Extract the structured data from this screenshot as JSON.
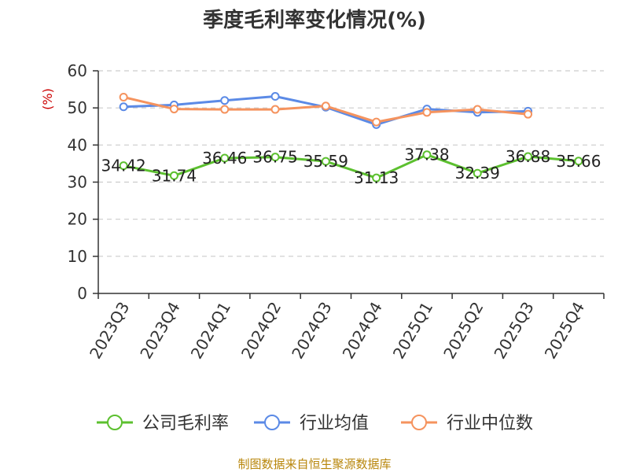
{
  "chart_data": {
    "type": "line",
    "title": "季度毛利率变化情况(%)",
    "ylabel": "(%)",
    "ylim": [
      0,
      60
    ],
    "yticks": [
      0,
      10,
      20,
      30,
      40,
      50,
      60
    ],
    "grid": true,
    "legend_position": "bottom",
    "categories": [
      "2023Q3",
      "2023Q4",
      "2024Q1",
      "2024Q2",
      "2024Q3",
      "2024Q4",
      "2025Q1",
      "2025Q2",
      "2025Q3",
      "2025Q4"
    ],
    "series": [
      {
        "name": "公司毛利率",
        "color": "#5cc02f",
        "values": [
          34.42,
          31.74,
          36.46,
          36.75,
          35.59,
          31.13,
          37.38,
          32.39,
          36.88,
          35.66
        ],
        "labels": [
          "34.42",
          "31.74",
          "36.46",
          "36.75",
          "35.59",
          "31.13",
          "37.38",
          "32.39",
          "36.88",
          "35.66"
        ]
      },
      {
        "name": "行业均值",
        "color": "#5b8ae6",
        "values": [
          50.3,
          50.8,
          52.0,
          53.1,
          50.2,
          45.5,
          49.7,
          48.8,
          49.1,
          null
        ]
      },
      {
        "name": "行业中位数",
        "color": "#f5935e",
        "values": [
          52.9,
          49.7,
          49.6,
          49.6,
          50.5,
          46.2,
          48.8,
          49.6,
          48.3,
          null
        ]
      }
    ]
  },
  "source_text": "制图数据来自恒生聚源数据库"
}
